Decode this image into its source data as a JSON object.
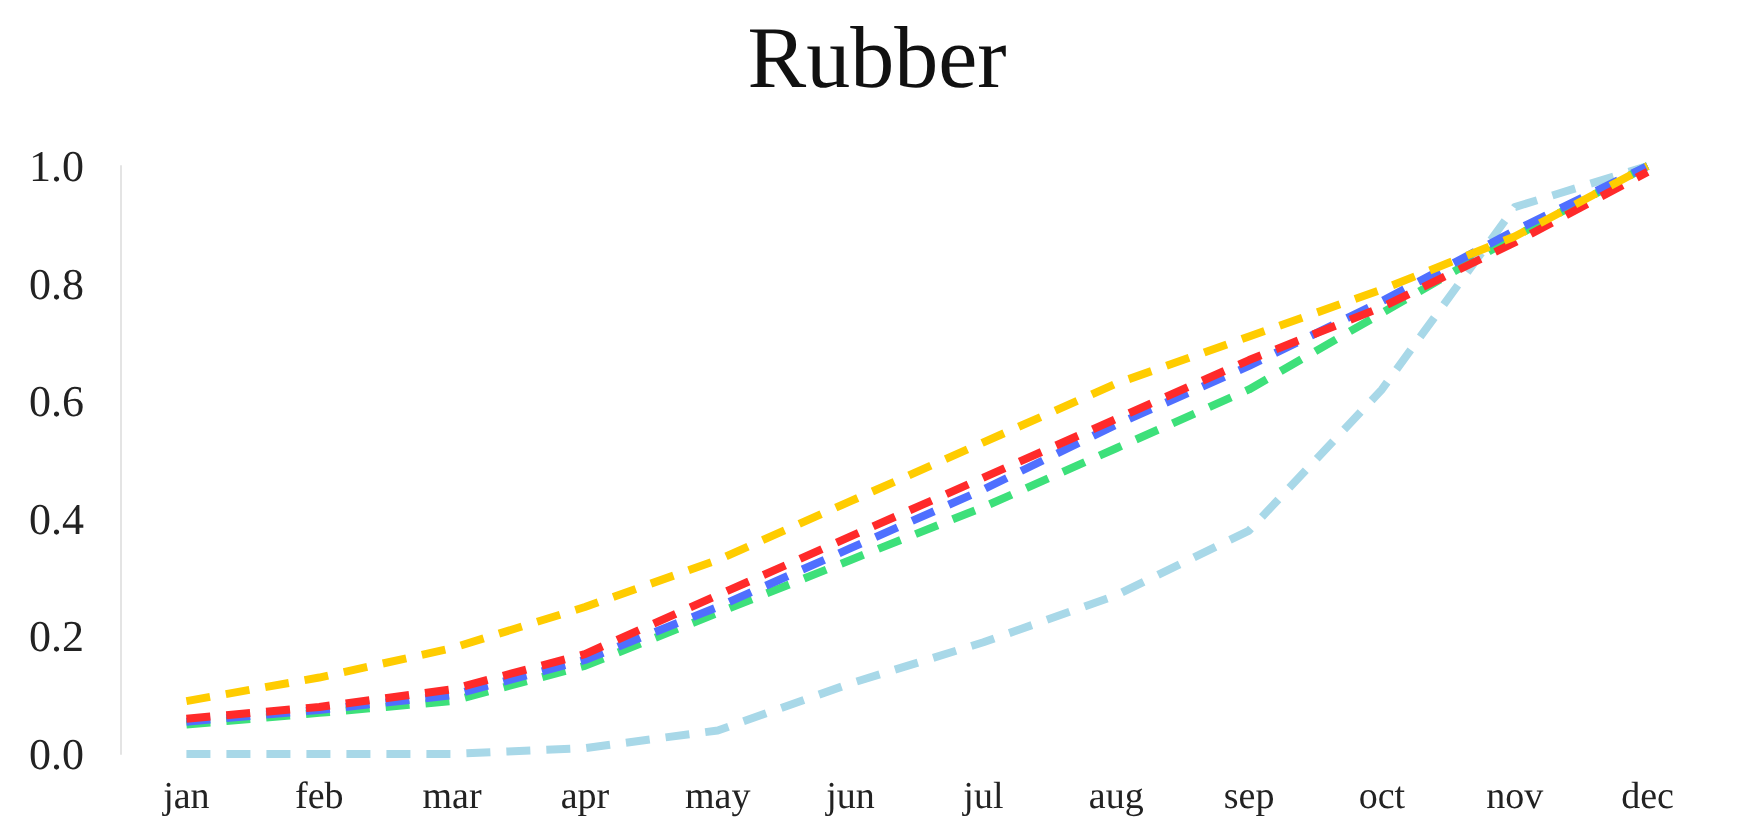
{
  "chart_data": {
    "type": "line",
    "title": "Rubber",
    "categories": [
      "jan",
      "feb",
      "mar",
      "apr",
      "may",
      "jun",
      "jul",
      "aug",
      "sep",
      "oct",
      "nov",
      "dec"
    ],
    "series": [
      {
        "color": "#a8d8e8",
        "values": [
          0,
          0,
          0,
          0.01,
          0.04,
          0.12,
          0.19,
          0.27,
          0.38,
          0.62,
          0.93,
          1.0
        ]
      },
      {
        "color": "#3de07a",
        "values": [
          0.05,
          0.07,
          0.09,
          0.15,
          0.24,
          0.33,
          0.42,
          0.52,
          0.62,
          0.75,
          0.88,
          1.0
        ]
      },
      {
        "color": "#4f6fff",
        "values": [
          0.055,
          0.075,
          0.1,
          0.16,
          0.25,
          0.35,
          0.45,
          0.56,
          0.66,
          0.77,
          0.89,
          1.0
        ]
      },
      {
        "color": "#ff2a2a",
        "values": [
          0.06,
          0.08,
          0.11,
          0.17,
          0.27,
          0.37,
          0.47,
          0.57,
          0.67,
          0.76,
          0.87,
          0.99
        ]
      },
      {
        "color": "#ffcc00",
        "values": [
          0.09,
          0.13,
          0.18,
          0.25,
          0.33,
          0.43,
          0.53,
          0.63,
          0.71,
          0.79,
          0.88,
          1.0
        ]
      }
    ],
    "ylim": [
      0,
      1
    ],
    "yticks": [
      {
        "value": 0,
        "label": "0.0"
      },
      {
        "value": 0.2,
        "label": "0.2"
      },
      {
        "value": 0.4,
        "label": "0.4"
      },
      {
        "value": 0.6,
        "label": "0.6"
      },
      {
        "value": 0.8,
        "label": "0.8"
      },
      {
        "value": 1,
        "label": "1.0"
      }
    ],
    "grid": false,
    "marker": "none",
    "line_style": "dashed"
  }
}
